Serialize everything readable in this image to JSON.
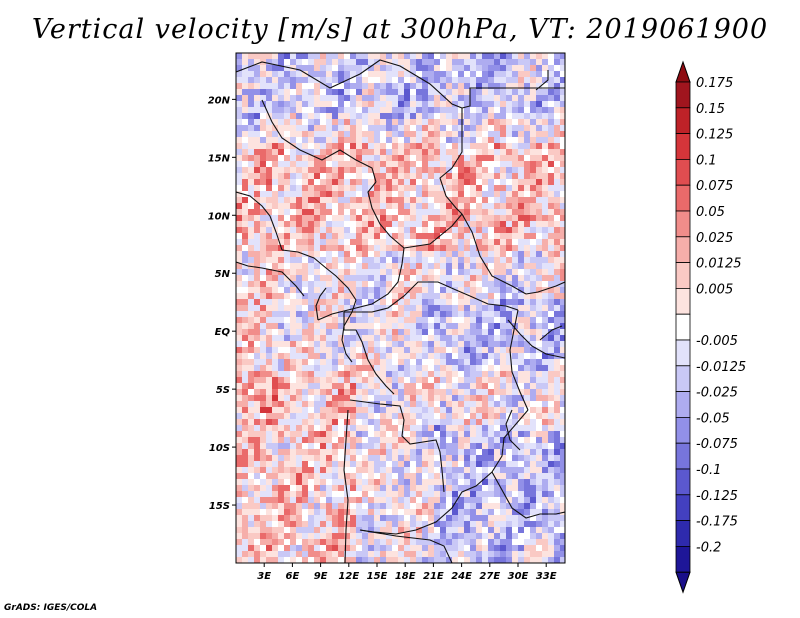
{
  "chart_data": {
    "type": "heatmap",
    "title": "Vertical velocity [m/s] at 300hPa, VT: 2019061900",
    "variable": "Vertical velocity",
    "units": "m/s",
    "level": "300hPa",
    "valid_time": "2019061900",
    "lon_range": [
      0,
      35
    ],
    "lat_range": [
      -20,
      24
    ],
    "x_ticks": [
      {
        "value": 3,
        "label": "3E"
      },
      {
        "value": 6,
        "label": "6E"
      },
      {
        "value": 9,
        "label": "9E"
      },
      {
        "value": 12,
        "label": "12E"
      },
      {
        "value": 15,
        "label": "15E"
      },
      {
        "value": 18,
        "label": "18E"
      },
      {
        "value": 21,
        "label": "21E"
      },
      {
        "value": 24,
        "label": "24E"
      },
      {
        "value": 27,
        "label": "27E"
      },
      {
        "value": 30,
        "label": "30E"
      },
      {
        "value": 33,
        "label": "33E"
      }
    ],
    "y_ticks": [
      {
        "value": 20,
        "label": "20N"
      },
      {
        "value": 15,
        "label": "15N"
      },
      {
        "value": 10,
        "label": "10N"
      },
      {
        "value": 5,
        "label": "5N"
      },
      {
        "value": 0,
        "label": "EQ"
      },
      {
        "value": -5,
        "label": "5S"
      },
      {
        "value": -10,
        "label": "10S"
      },
      {
        "value": -15,
        "label": "15S"
      }
    ],
    "colorbar": {
      "levels": [
        {
          "label": "0.175",
          "color": "#a0151e"
        },
        {
          "label": "0.15",
          "color": "#be2228"
        },
        {
          "label": "0.125",
          "color": "#d5353a"
        },
        {
          "label": "0.1",
          "color": "#e04d50"
        },
        {
          "label": "0.075",
          "color": "#ea6a6a"
        },
        {
          "label": "0.05",
          "color": "#f18d8a"
        },
        {
          "label": "0.025",
          "color": "#f6aeaa"
        },
        {
          "label": "0.0125",
          "color": "#fac9c4"
        },
        {
          "label": "0.005",
          "color": "#fde3df"
        },
        {
          "label": "",
          "color": "#ffffff"
        },
        {
          "label": "-0.005",
          "color": "#e2e2fb"
        },
        {
          "label": "-0.0125",
          "color": "#c9c8f6"
        },
        {
          "label": "-0.025",
          "color": "#aeacf0"
        },
        {
          "label": "-0.05",
          "color": "#9290e8"
        },
        {
          "label": "-0.075",
          "color": "#7775dc"
        },
        {
          "label": "-0.1",
          "color": "#5b58cf"
        },
        {
          "label": "-0.125",
          "color": "#4340c0"
        },
        {
          "label": "-0.175",
          "color": "#2e2aad"
        },
        {
          "label": "-0.2",
          "color": "#1e1698"
        }
      ],
      "top_color": "#8e0c12",
      "bottom_color": "#1a0f8a"
    }
  },
  "footer": {
    "credit": "GrADS: IGES/COLA"
  }
}
